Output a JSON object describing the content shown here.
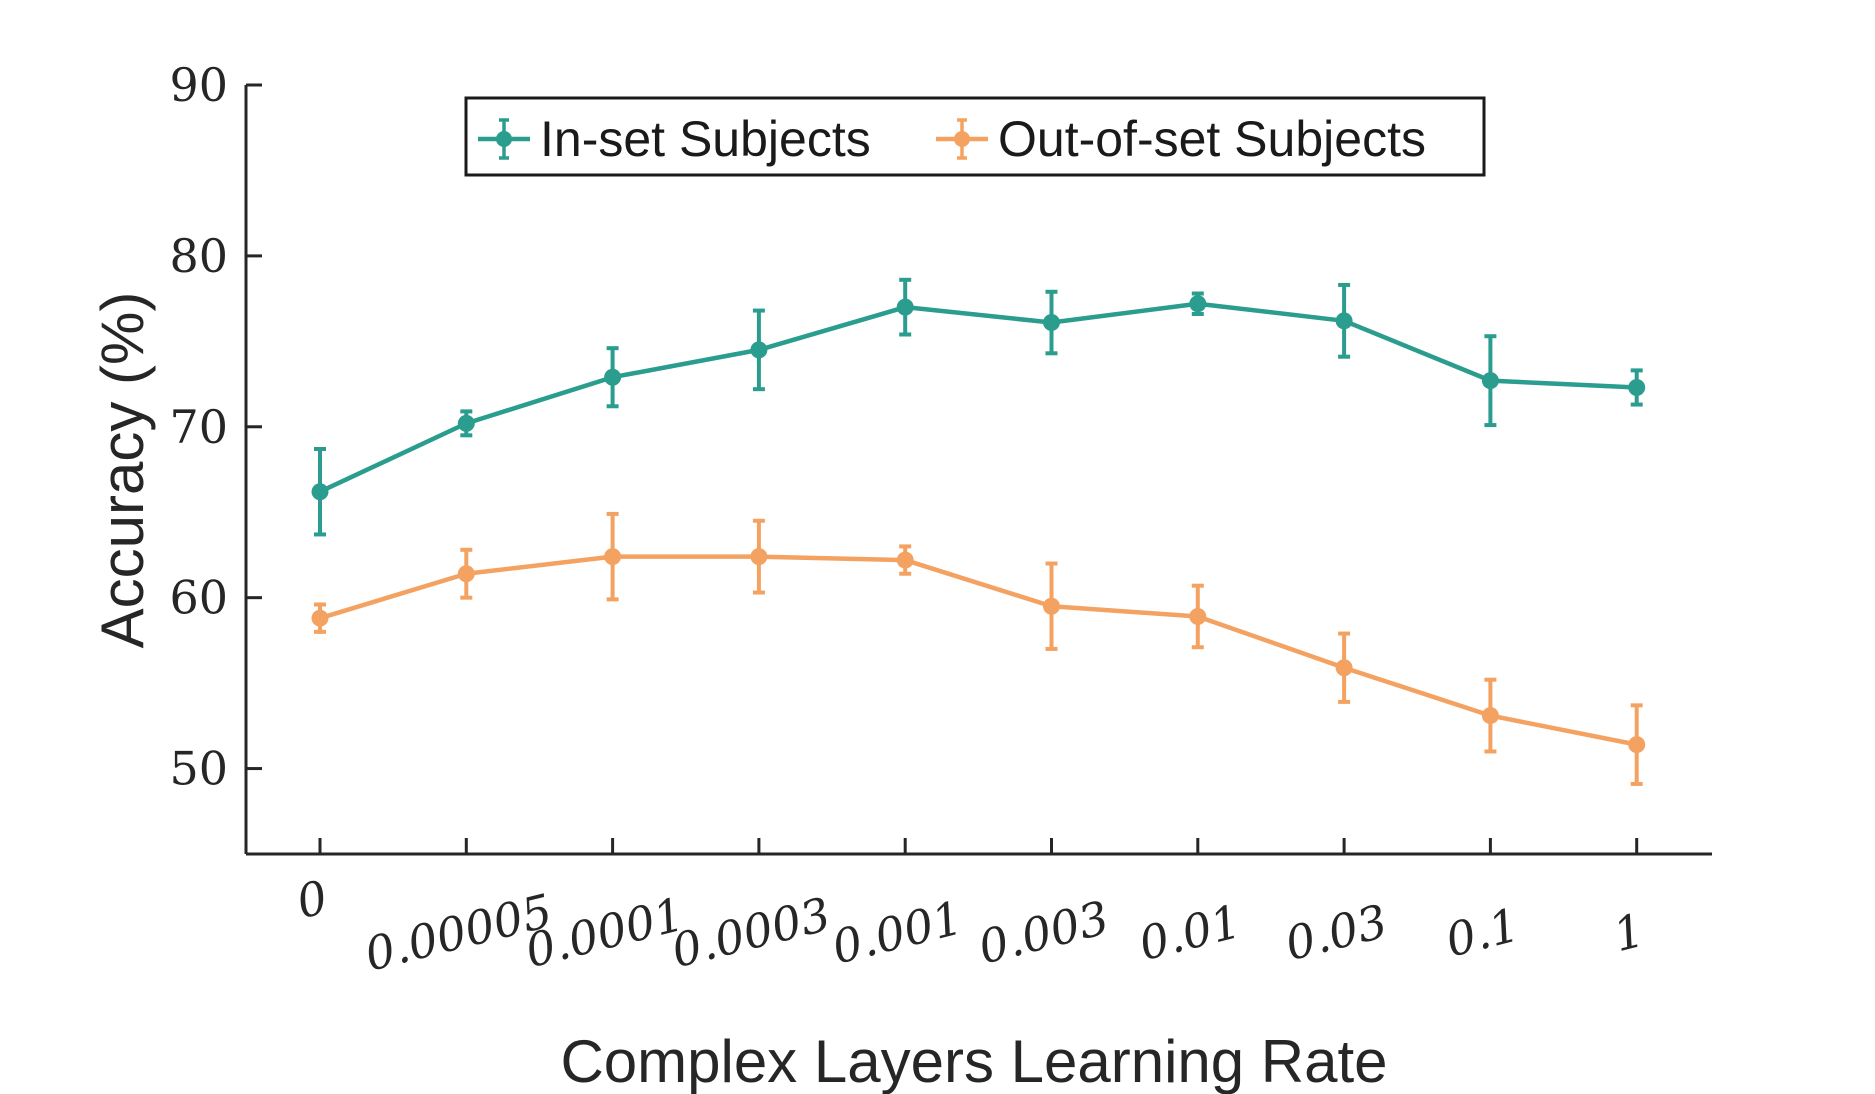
{
  "chart_data": {
    "type": "line",
    "title": "",
    "xlabel": "Complex Layers Learning Rate",
    "ylabel": "Accuracy (%)",
    "categories": [
      "0",
      "0.00005",
      "0.0001",
      "0.0003",
      "0.001",
      "0.003",
      "0.01",
      "0.03",
      "0.1",
      "1"
    ],
    "yticks": [
      "50",
      "60",
      "70",
      "80",
      "90"
    ],
    "ylim": [
      45,
      90
    ],
    "grid": false,
    "legend_position": "top-center",
    "series": [
      {
        "name": "In-set Subjects",
        "color": "#2a9d8f",
        "values": [
          66.2,
          70.2,
          72.9,
          74.5,
          77.0,
          76.1,
          77.2,
          76.2,
          72.7,
          72.3
        ],
        "errors": [
          2.5,
          0.7,
          1.7,
          2.3,
          1.6,
          1.8,
          0.6,
          2.1,
          2.6,
          1.0
        ]
      },
      {
        "name": "Out-of-set Subjects",
        "color": "#f4a261",
        "values": [
          58.8,
          61.4,
          62.4,
          62.4,
          62.2,
          59.5,
          58.9,
          55.9,
          53.1,
          51.4
        ],
        "errors": [
          0.8,
          1.4,
          2.5,
          2.1,
          0.8,
          2.5,
          1.8,
          2.0,
          2.1,
          2.3
        ]
      }
    ]
  }
}
